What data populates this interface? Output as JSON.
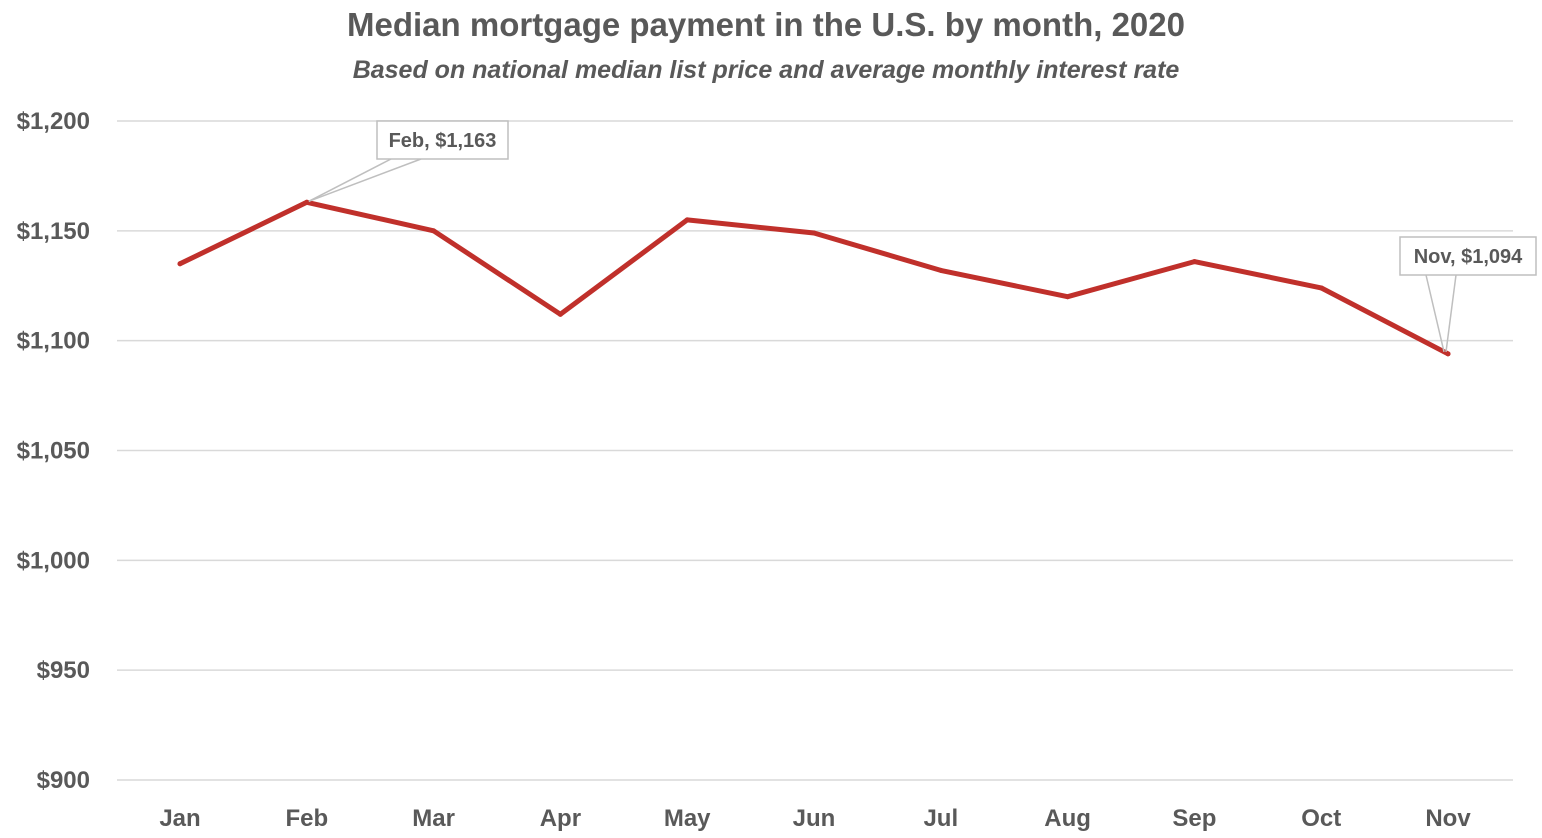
{
  "chart_data": {
    "type": "line",
    "title": "Median mortgage payment in the U.S. by month, 2020",
    "subtitle": "Based on national median list price and average monthly interest rate",
    "xlabel": "",
    "ylabel": "",
    "categories": [
      "Jan",
      "Feb",
      "Mar",
      "Apr",
      "May",
      "Jun",
      "Jul",
      "Aug",
      "Sep",
      "Oct",
      "Nov"
    ],
    "series": [
      {
        "values": [
          1135,
          1163,
          1150,
          1112,
          1155,
          1149,
          1132,
          1120,
          1136,
          1124,
          1094
        ],
        "color": "#c0302b"
      }
    ],
    "ylim": [
      900,
      1200
    ],
    "yticks": [
      900,
      950,
      1000,
      1050,
      1100,
      1150,
      1200
    ],
    "ytick_labels": [
      "$900",
      "$950",
      "$1,000",
      "$1,050",
      "$1,100",
      "$1,150",
      "$1,200"
    ],
    "grid": true,
    "legend": "none",
    "annotations": [
      {
        "category": "Feb",
        "text": "Feb, $1,163"
      },
      {
        "category": "Nov",
        "text": "Nov, $1,094"
      }
    ]
  }
}
